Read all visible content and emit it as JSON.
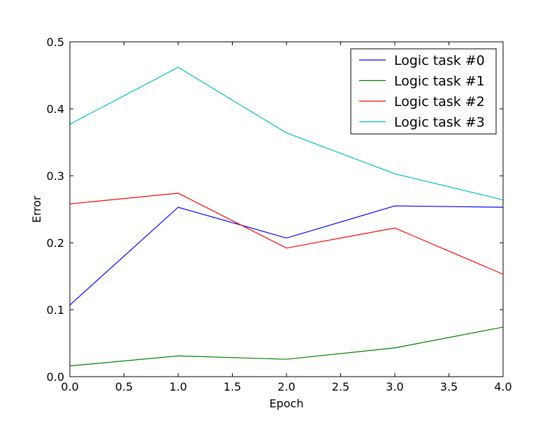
{
  "chart_data": {
    "type": "line",
    "title": "",
    "xlabel": "Epoch",
    "ylabel": "Error",
    "xlim": [
      0.0,
      4.0
    ],
    "ylim": [
      0.0,
      0.5
    ],
    "xticks": [
      "0.0",
      "0.5",
      "1.0",
      "1.5",
      "2.0",
      "2.5",
      "3.0",
      "3.5",
      "4.0"
    ],
    "yticks": [
      "0.0",
      "0.1",
      "0.2",
      "0.3",
      "0.4",
      "0.5"
    ],
    "x": [
      0,
      1,
      2,
      3,
      4
    ],
    "grid": false,
    "legend_position": "top-right",
    "series": [
      {
        "name": "Logic task #0",
        "color": "#0000ff",
        "values": [
          0.107,
          0.253,
          0.207,
          0.255,
          0.253
        ]
      },
      {
        "name": "Logic task #1",
        "color": "#008000",
        "values": [
          0.016,
          0.031,
          0.026,
          0.043,
          0.074
        ]
      },
      {
        "name": "Logic task #2",
        "color": "#ff0000",
        "values": [
          0.258,
          0.274,
          0.192,
          0.222,
          0.153
        ]
      },
      {
        "name": "Logic task #3",
        "color": "#00bfbf",
        "values": [
          0.377,
          0.462,
          0.364,
          0.303,
          0.264
        ]
      }
    ]
  }
}
